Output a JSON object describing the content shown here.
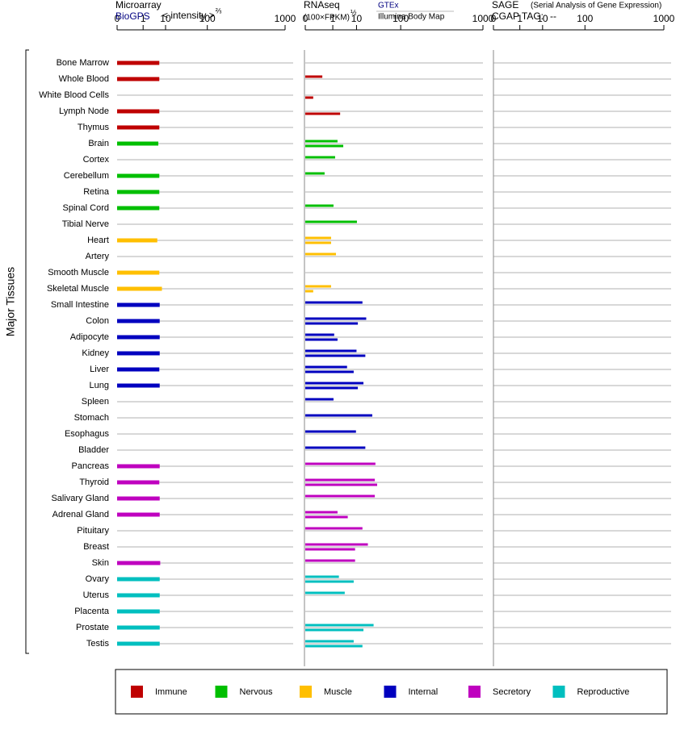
{
  "tissues": {
    "axis_label": "Major Tissues",
    "categories": [
      "Bone Marrow",
      "Whole Blood",
      "White Blood Cells",
      "Lymph Node",
      "Thymus",
      "Brain",
      "Cortex",
      "Cerebellum",
      "Retina",
      "Spinal Cord",
      "Tibial Nerve",
      "Heart",
      "Artery",
      "Smooth Muscle",
      "Skeletal Muscle",
      "Small Intestine",
      "Colon",
      "Adipocyte",
      "Kidney",
      "Liver",
      "Lung",
      "Spleen",
      "Stomach",
      "Esophagus",
      "Bladder",
      "Pancreas",
      "Thyroid",
      "Salivary Gland",
      "Adrenal Gland",
      "Pituitary",
      "Breast",
      "Skin",
      "Ovary",
      "Uterus",
      "Placenta",
      "Prostate",
      "Testis"
    ],
    "groups": [
      {
        "name": "Immune",
        "color": "#bf0000"
      },
      {
        "name": "Nervous",
        "color": "#00bf00"
      },
      {
        "name": "Muscle",
        "color": "#ffbf00"
      },
      {
        "name": "Internal",
        "color": "#0000bf"
      },
      {
        "name": "Secretory",
        "color": "#bf00bf"
      },
      {
        "name": "Reproductive",
        "color": "#00bfbf"
      }
    ],
    "group_of": [
      0,
      0,
      0,
      0,
      0,
      1,
      1,
      1,
      1,
      1,
      1,
      2,
      2,
      2,
      2,
      3,
      3,
      3,
      3,
      3,
      3,
      3,
      3,
      3,
      3,
      4,
      4,
      4,
      4,
      4,
      4,
      4,
      5,
      5,
      5,
      5,
      5
    ]
  },
  "chart_data": [
    {
      "type": "bar",
      "title": "Microarray",
      "source": "BioGPS",
      "unit": "< intensity >",
      "unit_power": "⅔",
      "xscale": "pow",
      "xlim": [
        0,
        1000
      ],
      "xticks": [
        0,
        1,
        10,
        100,
        1000
      ],
      "series": [
        {
          "values": [
            6,
            6,
            null,
            6,
            6,
            5.5,
            null,
            6,
            6,
            6,
            null,
            5,
            null,
            6,
            7.5,
            6.2,
            6.2,
            6.2,
            6.2,
            6,
            6.2,
            null,
            null,
            null,
            null,
            6.2,
            6,
            6.2,
            6.2,
            null,
            null,
            6.5,
            6.2,
            6.2,
            6.2,
            6.2,
            6.2
          ]
        }
      ]
    },
    {
      "type": "bar",
      "title": "RNAseq",
      "unit": "(100×FPKM)",
      "unit_power": "½",
      "xscale": "pow",
      "xlim": [
        0,
        1000
      ],
      "xticks": [
        0,
        1,
        10,
        100,
        1000
      ],
      "series": [
        {
          "name": "GTEx",
          "color": "#000080",
          "values": [
            null,
            0.17,
            null,
            null,
            null,
            1.8,
            1.35,
            0.27,
            null,
            1.1,
            10.3,
            0.79,
            1.5,
            null,
            0.79,
            15,
            19,
            1.2,
            10,
            4.7,
            16,
            1.1,
            27,
            9.6,
            18,
            32,
            31,
            31,
            1.8,
            15,
            21,
            9,
            2.1,
            3.8,
            null,
            29,
            8.1
          ]
        },
        {
          "name": "Illumina Body Map",
          "color": "#000000",
          "values": [
            null,
            null,
            0.01,
            2.4,
            null,
            3.3,
            null,
            null,
            null,
            null,
            null,
            0.79,
            null,
            null,
            0.01,
            null,
            11,
            1.8,
            18,
            8.1,
            11,
            null,
            null,
            null,
            null,
            null,
            35,
            null,
            5,
            null,
            9,
            null,
            8.1,
            null,
            null,
            16,
            15
          ]
        }
      ]
    },
    {
      "type": "bar",
      "title": "SAGE",
      "subtitle": "(Serial Analysis of Gene Expression)",
      "tag_label": "CGAP TAG:",
      "tag_value": "--",
      "xscale": "pow",
      "xlim": [
        0,
        1000
      ],
      "xticks": [
        0,
        1,
        10,
        100,
        1000
      ],
      "series": []
    }
  ]
}
